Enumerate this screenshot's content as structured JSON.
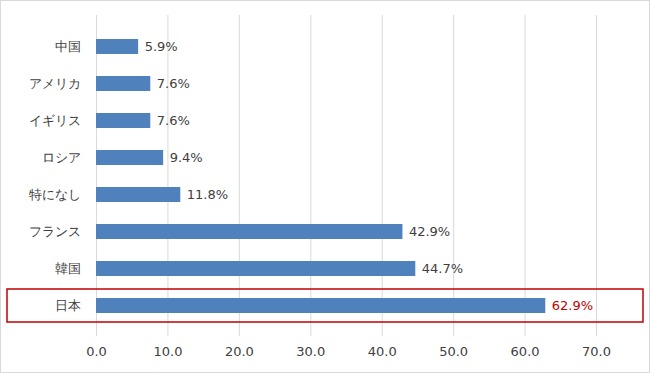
{
  "chart_data": {
    "type": "bar",
    "orientation": "horizontal",
    "categories": [
      "中国",
      "アメリカ",
      "イギリス",
      "ロシア",
      "特になし",
      "フランス",
      "韓国",
      "日本"
    ],
    "values": [
      5.9,
      7.6,
      7.6,
      9.4,
      11.8,
      42.9,
      44.7,
      62.9
    ],
    "value_labels": [
      "5.9%",
      "7.6%",
      "7.6%",
      "9.4%",
      "11.8%",
      "42.9%",
      "44.7%",
      "62.9%"
    ],
    "color": "#4f81bd",
    "xlim": [
      0,
      70
    ],
    "xticks": [
      {
        "value": 0,
        "label": "0.0"
      },
      {
        "value": 10,
        "label": "10.0"
      },
      {
        "value": 20,
        "label": "20.0"
      },
      {
        "value": 30,
        "label": "30.0"
      },
      {
        "value": 40,
        "label": "40.0"
      },
      {
        "value": 50,
        "label": "50.0"
      },
      {
        "value": 60,
        "label": "60.0"
      },
      {
        "value": 70,
        "label": "70.0"
      }
    ],
    "grid": true,
    "data_labels": true
  }
}
